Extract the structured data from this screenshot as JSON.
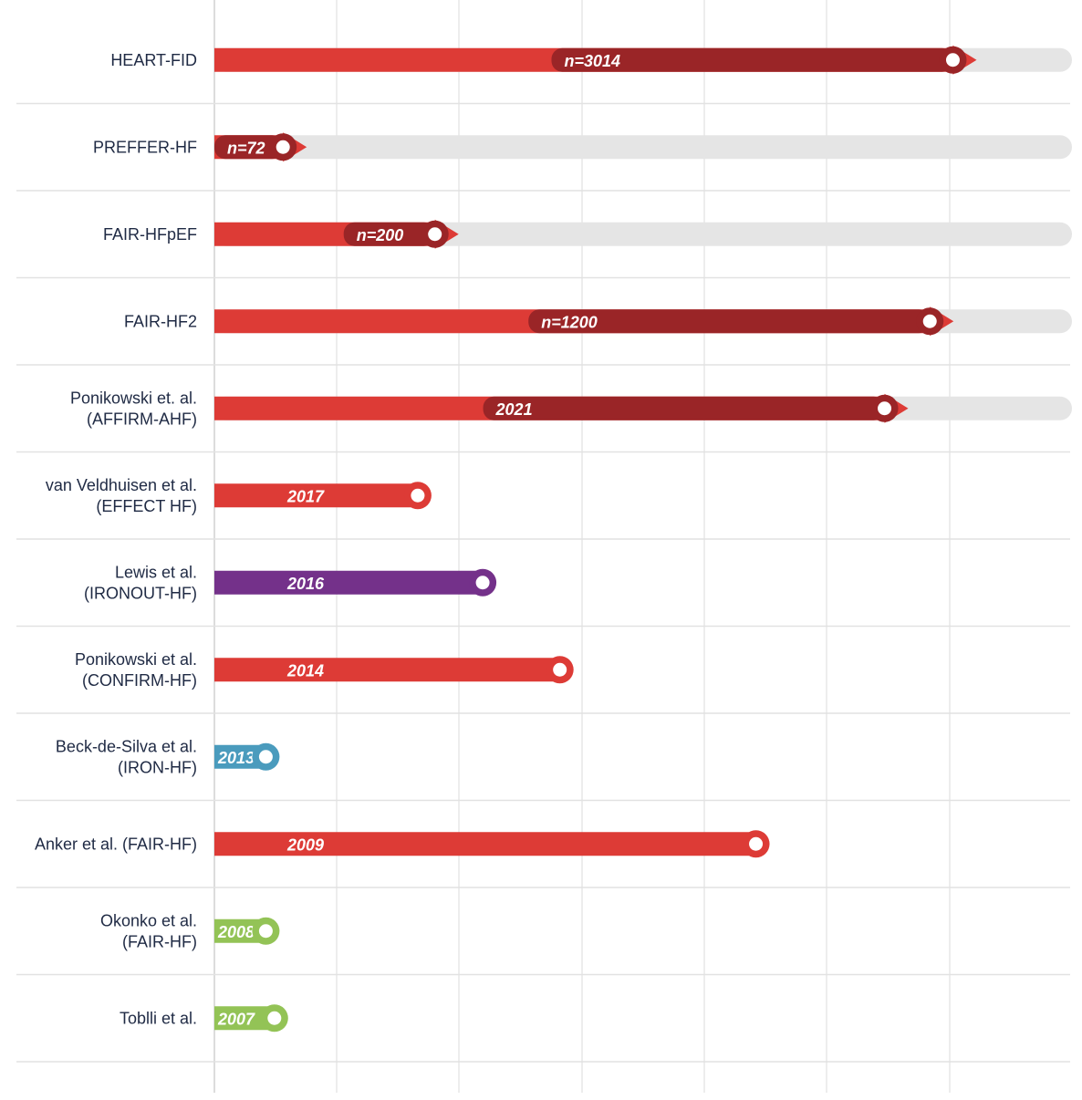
{
  "colors": {
    "red": "#dd3b36",
    "dark_red": "#9a2527",
    "purple": "#74318a",
    "blue": "#4a9bbd",
    "green": "#93c356",
    "track": "#e5e5e5"
  },
  "chart_data": {
    "type": "bar",
    "orientation": "horizontal",
    "title": "",
    "xlabel": "",
    "ylabel": "",
    "xlim": [
      0,
      3500
    ],
    "grid": true,
    "rows": [
      {
        "label": "HEART-FID",
        "tag": "n=3014",
        "value": 3014,
        "color": "dark_red",
        "track": true
      },
      {
        "label": "PREFFER-HF",
        "tag": "n=72",
        "value": 280,
        "color": "dark_red",
        "track": true
      },
      {
        "label": "FAIR-HFpEF",
        "tag": "n=200",
        "value": 900,
        "color": "dark_red",
        "track": true
      },
      {
        "label": "FAIR-HF2",
        "tag": "n=1200",
        "value": 2920,
        "color": "dark_red",
        "track": true
      },
      {
        "label": "Ponikowski et. al. (AFFIRM-AHF)",
        "tag": "2021",
        "value": 2735,
        "color": "dark_red",
        "track": true
      },
      {
        "label": "van Veldhuisen et al. (EFFECT HF)",
        "tag": "2017",
        "value": 830,
        "color": "red",
        "track": false
      },
      {
        "label": "Lewis et al. (IRONOUT-HF)",
        "tag": "2016",
        "value": 1095,
        "color": "purple",
        "track": false
      },
      {
        "label": "Ponikowski et al. (CONFIRM-HF)",
        "tag": "2014",
        "value": 1410,
        "color": "red",
        "track": false
      },
      {
        "label": "Beck-de-Silva et al. (IRON-HF)",
        "tag": "2013",
        "value": 210,
        "color": "blue",
        "track": false
      },
      {
        "label": "Anker et al. (FAIR-HF)",
        "tag": "2009",
        "value": 2210,
        "color": "red",
        "track": false
      },
      {
        "label": "Okonko et al. (FAIR-HF)",
        "tag": "2008",
        "value": 210,
        "color": "green",
        "track": false
      },
      {
        "label": "Toblli et al.",
        "tag": "2007",
        "value": 245,
        "color": "green",
        "track": false
      }
    ]
  }
}
